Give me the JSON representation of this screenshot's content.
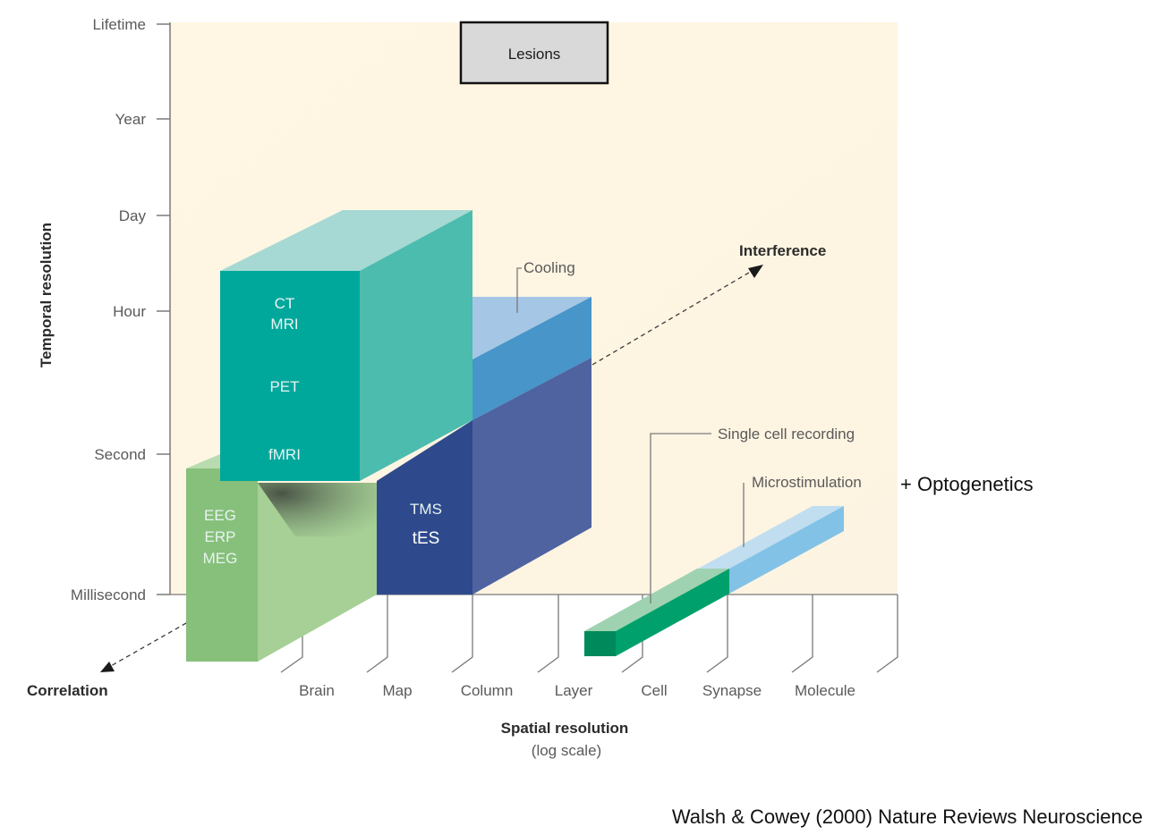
{
  "axes": {
    "y_title": "Temporal resolution",
    "y_ticks": [
      "Lifetime",
      "Year",
      "Day",
      "Hour",
      "Second",
      "Millisecond"
    ],
    "x_title": "Spatial resolution",
    "x_subtitle": "(log scale)",
    "x_ticks": [
      "Brain",
      "Map",
      "Column",
      "Layer",
      "Cell",
      "Synapse",
      "Molecule"
    ]
  },
  "directions": {
    "interference": "Interference",
    "correlation": "Correlation"
  },
  "methods": {
    "lesions": "Lesions",
    "ct": "CT",
    "mri": "MRI",
    "pet": "PET",
    "fmri": "fMRI",
    "eeg": "EEG",
    "erp": "ERP",
    "meg": "MEG",
    "tms": "TMS",
    "tes": "tES",
    "cooling": "Cooling",
    "single_cell": "Single cell recording",
    "microstimulation": "Microstimulation",
    "optogenetics": "+ Optogenetics"
  },
  "citation": "Walsh & Cowey (2000) Nature Reviews Neuroscience",
  "colors": {
    "panel": "#fdf6e6",
    "imaging_front": "#00a89c",
    "imaging_side": "#4cbcaf",
    "imaging_top": "#a6d9d3",
    "eeg_front": "#86c07a",
    "eeg_side": "#a6d095",
    "tms_front": "#2e4a8c",
    "tms_side": "#4e63a0",
    "cooling_side": "#4795c9",
    "cooling_top": "#a6c6e6",
    "cell_front": "#00a06c",
    "micro_side": "#82c2e6"
  }
}
